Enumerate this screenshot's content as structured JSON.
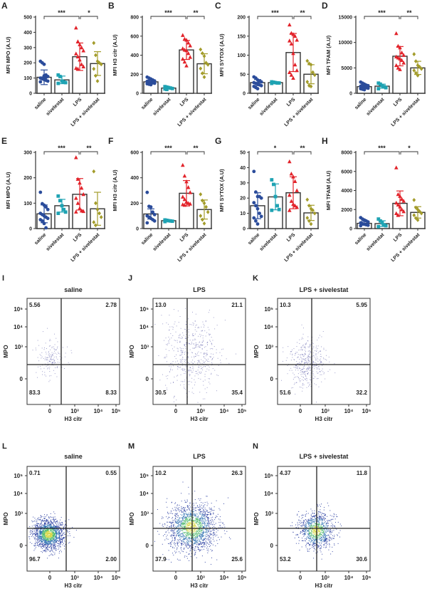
{
  "group_colors": {
    "saline": "#2b4c9b",
    "sivelestat": "#1fa3b3",
    "LPS": "#e2232a",
    "LPS + sivelestat": "#a39c2b"
  },
  "chart_data": [
    {
      "panel": "A",
      "type": "bar",
      "ylabel": "MFI MPO (A.U)",
      "ylim": [
        0,
        500
      ],
      "yticks": [
        0,
        100,
        200,
        300,
        400,
        500
      ],
      "categories": [
        "saline",
        "sivelestat",
        "LPS",
        "LPS + sivelestat"
      ],
      "values": [
        105,
        88,
        240,
        195
      ],
      "sd": [
        48,
        25,
        90,
        78
      ],
      "points": [
        [
          210,
          200,
          190,
          120,
          110,
          100,
          95,
          90,
          85,
          80,
          75,
          100,
          115,
          105
        ],
        [
          120,
          110,
          80,
          75,
          70,
          65
        ],
        [
          430,
          340,
          320,
          300,
          280,
          260,
          240,
          220,
          190,
          175,
          165,
          160
        ],
        [
          330,
          250,
          210,
          200,
          190,
          160,
          115,
          80
        ]
      ],
      "significance": [
        {
          "from": 0,
          "to": 2,
          "label": "***"
        },
        {
          "from": 2,
          "to": 3,
          "label": "*"
        }
      ]
    },
    {
      "panel": "B",
      "type": "bar",
      "ylabel": "MFI H3 citr (A.U)",
      "ylim": [
        0,
        800
      ],
      "yticks": [
        0,
        200,
        400,
        600,
        800
      ],
      "categories": [
        "saline",
        "sivelestat",
        "LPS",
        "LPS + sivelestat"
      ],
      "values": [
        120,
        55,
        455,
        310
      ],
      "sd": [
        20,
        10,
        100,
        105
      ],
      "points": [
        [
          170,
          160,
          150,
          140,
          130,
          125,
          120,
          115,
          110,
          105,
          100,
          95,
          90,
          130
        ],
        [
          70,
          65,
          60,
          55,
          50,
          45,
          40
        ],
        [
          610,
          570,
          560,
          530,
          500,
          470,
          455,
          450,
          420,
          380,
          360,
          330,
          290
        ],
        [
          460,
          420,
          390,
          320,
          300,
          260,
          210,
          170
        ]
      ],
      "significance": [
        {
          "from": 0,
          "to": 2,
          "label": "***"
        },
        {
          "from": 2,
          "to": 3,
          "label": "**"
        }
      ]
    },
    {
      "panel": "C",
      "type": "bar",
      "ylabel": "MFI SYTOX (A.U)",
      "ylim": [
        0,
        200
      ],
      "yticks": [
        0,
        50,
        100,
        150,
        200
      ],
      "categories": [
        "saline",
        "sivelestat",
        "LPS",
        "LPS + sivelestat"
      ],
      "values": [
        28,
        28,
        107,
        50
      ],
      "sd": [
        8,
        2,
        50,
        25
      ],
      "points": [
        [
          43,
          40,
          35,
          32,
          30,
          28,
          26,
          25,
          22,
          20,
          18,
          15,
          12
        ],
        [
          30,
          29,
          28,
          27,
          27,
          26
        ],
        [
          180,
          158,
          155,
          150,
          140,
          138,
          130,
          105,
          75,
          60,
          55,
          48,
          40
        ],
        [
          85,
          78,
          75,
          55,
          48,
          30,
          20,
          18
        ]
      ],
      "significance": [
        {
          "from": 0,
          "to": 2,
          "label": "***"
        },
        {
          "from": 2,
          "to": 3,
          "label": "**"
        }
      ]
    },
    {
      "panel": "D",
      "type": "bar",
      "ylabel": "MFI TFAM (A.U)",
      "ylim": [
        0,
        15000
      ],
      "yticks": [
        0,
        5000,
        10000,
        15000
      ],
      "categories": [
        "saline",
        "sivelestat",
        "LPS",
        "LPS + sivelestat"
      ],
      "values": [
        1300,
        1400,
        7300,
        5000
      ],
      "sd": [
        400,
        400,
        1900,
        1300
      ],
      "points": [
        [
          2200,
          2000,
          1800,
          1600,
          1500,
          1400,
          1300,
          1200,
          1100,
          1000,
          900,
          800,
          700
        ],
        [
          2000,
          1800,
          1500,
          1300,
          1100,
          900
        ],
        [
          11800,
          9300,
          9000,
          8000,
          7500,
          7200,
          7000,
          6800,
          6500,
          6000,
          5500,
          5000,
          4700
        ],
        [
          7700,
          6300,
          5500,
          5200,
          4800,
          4500,
          4000,
          3500
        ]
      ],
      "significance": [
        {
          "from": 0,
          "to": 2,
          "label": "***"
        },
        {
          "from": 2,
          "to": 3,
          "label": "**"
        }
      ]
    },
    {
      "panel": "E",
      "type": "bar",
      "ylabel": "MFI MPO (A.U)",
      "ylim": [
        0,
        300
      ],
      "yticks": [
        0,
        100,
        200,
        300
      ],
      "categories": [
        "saline",
        "sivelestat",
        "LPS",
        "LPS + sivelestat"
      ],
      "values": [
        58,
        90,
        135,
        78
      ],
      "sd": [
        35,
        25,
        62,
        65
      ],
      "points": [
        [
          143,
          98,
          92,
          85,
          75,
          60,
          55,
          50,
          45,
          40,
          35,
          30,
          20,
          3
        ],
        [
          128,
          110,
          90,
          75,
          65,
          60
        ],
        [
          280,
          195,
          180,
          160,
          135,
          120,
          100,
          80,
          70,
          68,
          66
        ],
        [
          225,
          100,
          75,
          60,
          45,
          25,
          13
        ]
      ],
      "significance": [
        {
          "from": 0,
          "to": 2,
          "label": "***"
        },
        {
          "from": 2,
          "to": 3,
          "label": "**"
        }
      ]
    },
    {
      "panel": "F",
      "type": "bar",
      "ylabel": "MFI H3 citr (A.U)",
      "ylim": [
        0,
        600
      ],
      "yticks": [
        0,
        200,
        400,
        600
      ],
      "categories": [
        "saline",
        "sivelestat",
        "LPS",
        "LPS + sivelestat"
      ],
      "values": [
        115,
        62,
        278,
        150
      ],
      "sd": [
        40,
        5,
        100,
        75
      ],
      "points": [
        [
          285,
          175,
          170,
          130,
          110,
          100,
          90,
          80,
          70,
          60,
          45
        ],
        [
          68,
          65,
          62,
          60,
          58,
          55
        ],
        [
          500,
          415,
          370,
          325,
          285,
          250,
          230,
          210,
          200,
          195,
          190,
          185
        ],
        [
          270,
          220,
          200,
          170,
          130,
          100,
          70,
          40
        ]
      ],
      "significance": [
        {
          "from": 0,
          "to": 2,
          "label": "***"
        },
        {
          "from": 2,
          "to": 3,
          "label": "**"
        }
      ]
    },
    {
      "panel": "G",
      "type": "bar",
      "ylabel": "MFI SYTOX (A.U)",
      "ylim": [
        0,
        50
      ],
      "yticks": [
        0,
        10,
        20,
        30,
        40,
        50
      ],
      "categories": [
        "saline",
        "sivelestat",
        "LPS",
        "LPS + sivelestat"
      ],
      "values": [
        15,
        20.8,
        23.5,
        10.3
      ],
      "sd": [
        8.5,
        8.5,
        10.5,
        5
      ],
      "points": [
        [
          37.5,
          24,
          21,
          21,
          20,
          17,
          15,
          13,
          10,
          8,
          7,
          5,
          3
        ],
        [
          32,
          29,
          21,
          15,
          12.5,
          12
        ],
        [
          44,
          36,
          34,
          31,
          25,
          22,
          18,
          16,
          15,
          14,
          12
        ],
        [
          19,
          15,
          13,
          12,
          10,
          7,
          5,
          3
        ]
      ],
      "significance": [
        {
          "from": 0,
          "to": 2,
          "label": "*"
        },
        {
          "from": 2,
          "to": 3,
          "label": "**"
        }
      ]
    },
    {
      "panel": "H",
      "type": "bar",
      "ylabel": "MFI TFAM (A.U)",
      "ylim": [
        0,
        8000
      ],
      "yticks": [
        0,
        2000,
        4000,
        6000,
        8000
      ],
      "categories": [
        "saline",
        "sivelestat",
        "LPS",
        "LPS + sivelestat"
      ],
      "values": [
        550,
        520,
        2650,
        1700
      ],
      "sd": [
        200,
        300,
        1300,
        600
      ],
      "points": [
        [
          1150,
          1000,
          900,
          800,
          700,
          600,
          500,
          450,
          400,
          350,
          300
        ],
        [
          1000,
          800,
          600,
          400,
          300,
          200
        ],
        [
          6400,
          3600,
          3400,
          3100,
          2900,
          2700,
          2500,
          2300,
          2000,
          1800,
          1600,
          1400
        ],
        [
          3000,
          2200,
          2000,
          1800,
          1600,
          1400,
          1100,
          900
        ]
      ],
      "significance": [
        {
          "from": 0,
          "to": 2,
          "label": "***"
        },
        {
          "from": 2,
          "to": 3,
          "label": "*"
        }
      ]
    },
    {
      "panel": "I",
      "type": "scatter",
      "title": "saline",
      "xlabel": "H3 citr",
      "ylabel": "MPO",
      "xticks": [
        "0",
        "10³",
        "10⁴",
        "10⁵"
      ],
      "yticks": [
        "0",
        "10³",
        "10⁴",
        "10⁵"
      ],
      "quadrants": {
        "upper_left": "5.56",
        "upper_right": "2.78",
        "lower_left": "83.3",
        "lower_right": "8.33"
      }
    },
    {
      "panel": "J",
      "type": "scatter",
      "title": "LPS",
      "xlabel": "H3 citr",
      "ylabel": "MPO",
      "xticks": [
        "0",
        "10³",
        "10⁴",
        "10⁵"
      ],
      "yticks": [
        "0",
        "10³",
        "10⁴",
        "10⁵"
      ],
      "quadrants": {
        "upper_left": "13.0",
        "upper_right": "21.1",
        "lower_left": "30.5",
        "lower_right": "35.4"
      }
    },
    {
      "panel": "K",
      "type": "scatter",
      "title": "LPS + sivelestat",
      "xlabel": "H3 citr",
      "ylabel": "MPO",
      "xticks": [
        "0",
        "10³",
        "10⁴",
        "10⁵"
      ],
      "yticks": [
        "0",
        "10³",
        "10⁴",
        "10⁵"
      ],
      "quadrants": {
        "upper_left": "10.3",
        "upper_right": "5.95",
        "lower_left": "51.6",
        "lower_right": "32.2"
      }
    },
    {
      "panel": "L",
      "type": "scatter",
      "title": "saline",
      "xlabel": "H3 citr",
      "ylabel": "MPO",
      "xticks": [
        "0",
        "10³",
        "10⁴",
        "10⁵"
      ],
      "yticks": [
        "0",
        "10³",
        "10⁴",
        "10⁵"
      ],
      "quadrants": {
        "upper_left": "0.71",
        "upper_right": "0.55",
        "lower_left": "96.7",
        "lower_right": "2.00"
      }
    },
    {
      "panel": "M",
      "type": "scatter",
      "title": "LPS",
      "xlabel": "H3 citr",
      "ylabel": "MPO",
      "xticks": [
        "0",
        "10³",
        "10⁴",
        "10⁵"
      ],
      "yticks": [
        "0",
        "10³",
        "10⁴",
        "10⁵"
      ],
      "quadrants": {
        "upper_left": "10.2",
        "upper_right": "26.3",
        "lower_left": "37.9",
        "lower_right": "25.6"
      }
    },
    {
      "panel": "N",
      "type": "scatter",
      "title": "LPS + sivelestat",
      "xlabel": "H3 citr",
      "ylabel": "MPO",
      "xticks": [
        "0",
        "10³",
        "10⁴",
        "10⁵"
      ],
      "yticks": [
        "0",
        "10³",
        "10⁴",
        "10⁵"
      ],
      "quadrants": {
        "upper_left": "4.37",
        "upper_right": "11.8",
        "lower_left": "53.2",
        "lower_right": "30.6"
      }
    }
  ]
}
